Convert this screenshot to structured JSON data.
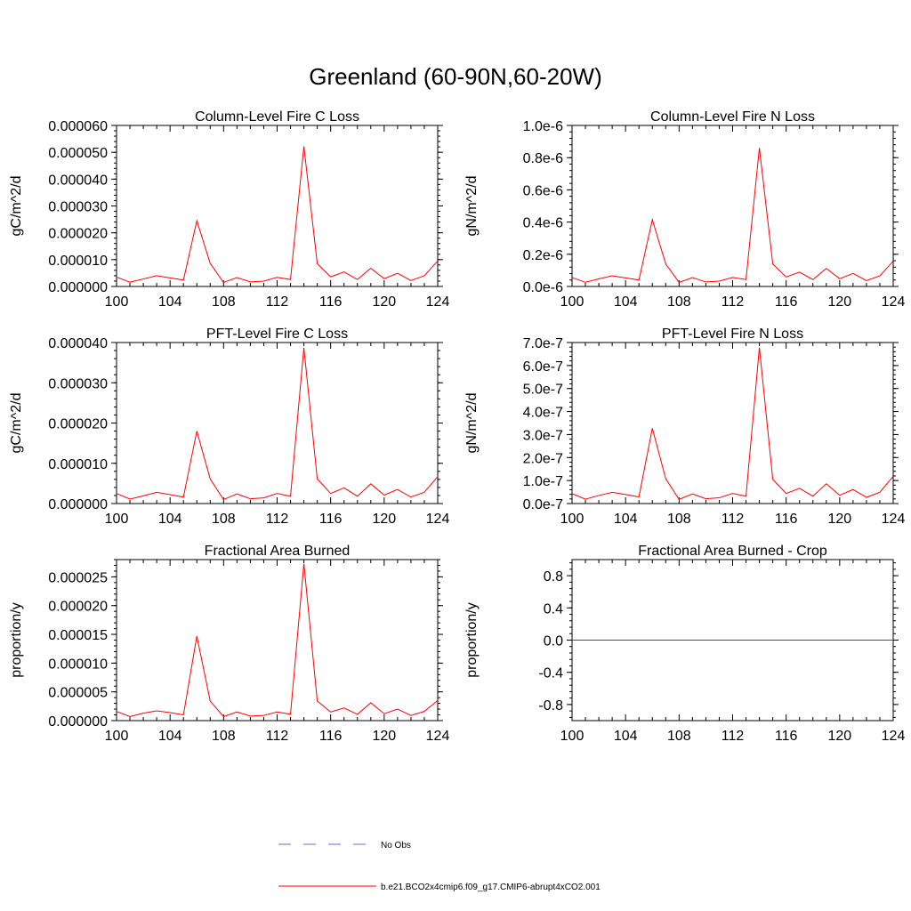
{
  "page_title": "Greenland (60-90N,60-20W)",
  "colors": {
    "series": "#ff0000",
    "no_obs": "#6a6ad8",
    "axis": "#000000"
  },
  "legend": {
    "entries": [
      {
        "label": "No Obs",
        "style": "dashed",
        "color": "#6a6ad8"
      },
      {
        "label": "b.e21.BCO2x4cmip6.f09_g17.CMIP6-abrupt4xCO2.001",
        "style": "solid",
        "color": "#ff0000"
      }
    ]
  },
  "chart_data": [
    {
      "type": "line",
      "title": "Column-Level Fire C Loss",
      "ylabel": "gC/m^2/d",
      "xlim": [
        100,
        124
      ],
      "ylim": [
        0,
        6e-05
      ],
      "xticks": [
        100,
        104,
        108,
        112,
        116,
        120,
        124
      ],
      "xtick_labels": [
        "100",
        "104",
        "108",
        "112",
        "116",
        "120",
        "124"
      ],
      "yticks": [
        0,
        1e-05,
        2e-05,
        3e-05,
        4e-05,
        5e-05,
        6e-05
      ],
      "ytick_labels": [
        "0.000000",
        "0.000010",
        "0.000020",
        "0.000030",
        "0.000040",
        "0.000050",
        "0.000060"
      ],
      "x": [
        100,
        101,
        102,
        103,
        104,
        105,
        106,
        107,
        108,
        109,
        110,
        111,
        112,
        113,
        114,
        115,
        116,
        117,
        118,
        119,
        120,
        121,
        122,
        123,
        124
      ],
      "series": [
        {
          "name": "b.e21.BCO2x4cmip6.f09_g17.CMIP6-abrupt4xCO2.001",
          "values": [
            3.5e-06,
            1.6e-06,
            2.8e-06,
            4e-06,
            3.2e-06,
            2.4e-06,
            2.45e-05,
            8.6e-06,
            1.5e-06,
            3.3e-06,
            1.7e-06,
            2e-06,
            3.4e-06,
            2.6e-06,
            5.22e-05,
            8.5e-06,
            3.6e-06,
            5.4e-06,
            2.6e-06,
            6.8e-06,
            2.9e-06,
            4.9e-06,
            2.2e-06,
            4e-06,
            9.5e-06
          ]
        }
      ]
    },
    {
      "type": "line",
      "title": "Column-Level Fire N Loss",
      "ylabel": "gN/m^2/d",
      "xlim": [
        100,
        124
      ],
      "ylim": [
        0,
        1e-06
      ],
      "xticks": [
        100,
        104,
        108,
        112,
        116,
        120,
        124
      ],
      "xtick_labels": [
        "100",
        "104",
        "108",
        "112",
        "116",
        "120",
        "124"
      ],
      "yticks": [
        0,
        2e-07,
        4e-07,
        6e-07,
        8e-07,
        1e-06
      ],
      "ytick_labels": [
        "0.0e-6",
        "0.2e-6",
        "0.4e-6",
        "0.6e-6",
        "0.8e-6",
        "1.0e-6"
      ],
      "x": [
        100,
        101,
        102,
        103,
        104,
        105,
        106,
        107,
        108,
        109,
        110,
        111,
        112,
        113,
        114,
        115,
        116,
        117,
        118,
        119,
        120,
        121,
        122,
        123,
        124
      ],
      "series": [
        {
          "name": "b.e21.BCO2x4cmip6.f09_g17.CMIP6-abrupt4xCO2.001",
          "values": [
            5.5e-08,
            2.6e-08,
            4.7e-08,
            6.6e-08,
            5.3e-08,
            4e-08,
            4.15e-07,
            1.4e-07,
            2.5e-08,
            5.5e-08,
            2.8e-08,
            3.3e-08,
            5.6e-08,
            4.3e-08,
            8.6e-07,
            1.4e-07,
            5.9e-08,
            8.9e-08,
            4.3e-08,
            1.12e-07,
            4.8e-08,
            8.1e-08,
            3.6e-08,
            6.6e-08,
            1.57e-07
          ]
        }
      ]
    },
    {
      "type": "line",
      "title": "PFT-Level Fire C Loss",
      "ylabel": "gC/m^2/d",
      "xlim": [
        100,
        124
      ],
      "ylim": [
        0,
        4e-05
      ],
      "xticks": [
        100,
        104,
        108,
        112,
        116,
        120,
        124
      ],
      "xtick_labels": [
        "100",
        "104",
        "108",
        "112",
        "116",
        "120",
        "124"
      ],
      "yticks": [
        0,
        1e-05,
        2e-05,
        3e-05,
        4e-05
      ],
      "ytick_labels": [
        "0.000000",
        "0.000010",
        "0.000020",
        "0.000030",
        "0.000040"
      ],
      "x": [
        100,
        101,
        102,
        103,
        104,
        105,
        106,
        107,
        108,
        109,
        110,
        111,
        112,
        113,
        114,
        115,
        116,
        117,
        118,
        119,
        120,
        121,
        122,
        123,
        124
      ],
      "series": [
        {
          "name": "b.e21.BCO2x4cmip6.f09_g17.CMIP6-abrupt4xCO2.001",
          "values": [
            2.5e-06,
            1.1e-06,
            1.9e-06,
            2.8e-06,
            2.2e-06,
            1.6e-06,
            1.8e-05,
            6.1e-06,
            1e-06,
            2.4e-06,
            1.2e-06,
            1.4e-06,
            2.5e-06,
            1.8e-06,
            3.87e-05,
            6.1e-06,
            2.5e-06,
            3.9e-06,
            1.8e-06,
            4.9e-06,
            2.1e-06,
            3.5e-06,
            1.6e-06,
            2.8e-06,
            6.7e-06
          ]
        }
      ]
    },
    {
      "type": "line",
      "title": "PFT-Level Fire N Loss",
      "ylabel": "gN/m^2/d",
      "xlim": [
        100,
        124
      ],
      "ylim": [
        0,
        7e-07
      ],
      "xticks": [
        100,
        104,
        108,
        112,
        116,
        120,
        124
      ],
      "xtick_labels": [
        "100",
        "104",
        "108",
        "112",
        "116",
        "120",
        "124"
      ],
      "yticks": [
        0,
        1e-07,
        2e-07,
        3e-07,
        4e-07,
        5e-07,
        6e-07,
        7e-07
      ],
      "ytick_labels": [
        "0.0e-7",
        "1.0e-7",
        "2.0e-7",
        "3.0e-7",
        "4.0e-7",
        "5.0e-7",
        "6.0e-7",
        "7.0e-7"
      ],
      "x": [
        100,
        101,
        102,
        103,
        104,
        105,
        106,
        107,
        108,
        109,
        110,
        111,
        112,
        113,
        114,
        115,
        116,
        117,
        118,
        119,
        120,
        121,
        122,
        123,
        124
      ],
      "series": [
        {
          "name": "b.e21.BCO2x4cmip6.f09_g17.CMIP6-abrupt4xCO2.001",
          "values": [
            4.3e-08,
            1.9e-08,
            3.5e-08,
            4.9e-08,
            3.9e-08,
            2.9e-08,
            3.27e-07,
            1.08e-07,
            1.8e-08,
            4.2e-08,
            2.1e-08,
            2.5e-08,
            4.4e-08,
            3.2e-08,
            6.78e-07,
            1.05e-07,
            4.4e-08,
            6.6e-08,
            3.2e-08,
            8.6e-08,
            3.6e-08,
            6.1e-08,
            2.7e-08,
            4.9e-08,
            1.18e-07
          ]
        }
      ]
    },
    {
      "type": "line",
      "title": "Fractional Area Burned",
      "ylabel": "proportion/y",
      "xlim": [
        100,
        124
      ],
      "ylim": [
        0,
        2.8e-05
      ],
      "xticks": [
        100,
        104,
        108,
        112,
        116,
        120,
        124
      ],
      "xtick_labels": [
        "100",
        "104",
        "108",
        "112",
        "116",
        "120",
        "124"
      ],
      "yticks": [
        0,
        5e-06,
        1e-05,
        1.5e-05,
        2e-05,
        2.5e-05
      ],
      "ytick_labels": [
        "0.000000",
        "0.000005",
        "0.000010",
        "0.000015",
        "0.000020",
        "0.000025"
      ],
      "x": [
        100,
        101,
        102,
        103,
        104,
        105,
        106,
        107,
        108,
        109,
        110,
        111,
        112,
        113,
        114,
        115,
        116,
        117,
        118,
        119,
        120,
        121,
        122,
        123,
        124
      ],
      "series": [
        {
          "name": "b.e21.BCO2x4cmip6.f09_g17.CMIP6-abrupt4xCO2.001",
          "values": [
            1.6e-06,
            7e-07,
            1.3e-06,
            1.7e-06,
            1.4e-06,
            1e-06,
            1.47e-05,
            3.4e-06,
            7e-07,
            1.5e-06,
            8e-07,
            9e-07,
            1.5e-06,
            1.1e-06,
            2.73e-05,
            3.4e-06,
            1.5e-06,
            2.2e-06,
            1.1e-06,
            3.1e-06,
            1.2e-06,
            2e-06,
            9e-07,
            1.6e-06,
            3.5e-06
          ]
        }
      ]
    },
    {
      "type": "line",
      "title": "Fractional Area Burned - Crop",
      "ylabel": "proportion/y",
      "xlim": [
        100,
        124
      ],
      "ylim": [
        -1,
        1
      ],
      "xticks": [
        100,
        104,
        108,
        112,
        116,
        120,
        124
      ],
      "xtick_labels": [
        "100",
        "104",
        "108",
        "112",
        "116",
        "120",
        "124"
      ],
      "yticks": [
        -0.8,
        -0.4,
        0,
        0.4,
        0.8
      ],
      "ytick_labels": [
        "-0.8",
        "-0.4",
        "0.0",
        "0.4",
        "0.8"
      ],
      "x": [
        100,
        101,
        102,
        103,
        104,
        105,
        106,
        107,
        108,
        109,
        110,
        111,
        112,
        113,
        114,
        115,
        116,
        117,
        118,
        119,
        120,
        121,
        122,
        123,
        124
      ],
      "series": [
        {
          "name": "b.e21.BCO2x4cmip6.f09_g17.CMIP6-abrupt4xCO2.001",
          "values": [
            0,
            0,
            0,
            0,
            0,
            0,
            0,
            0,
            0,
            0,
            0,
            0,
            0,
            0,
            0,
            0,
            0,
            0,
            0,
            0,
            0,
            0,
            0,
            0,
            0
          ]
        }
      ]
    }
  ]
}
